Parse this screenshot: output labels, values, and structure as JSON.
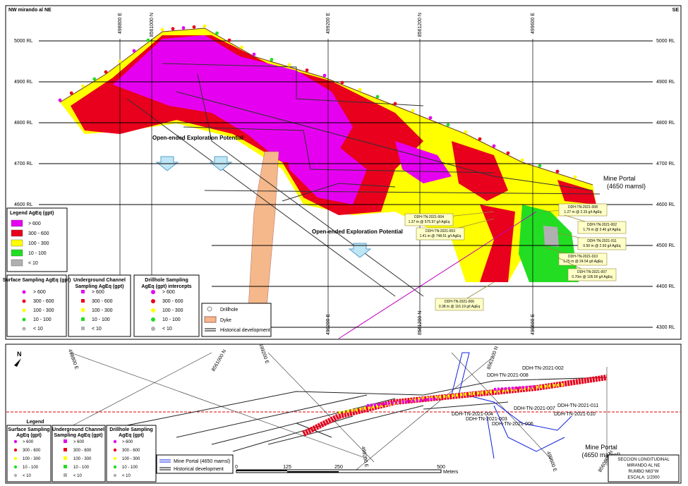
{
  "section": {
    "view_left": "NW mirando al NE",
    "view_right": "SE",
    "rl_labels": [
      "5000 RL",
      "4900 RL",
      "4800 RL",
      "4700 RL",
      "4600 RL",
      "4500 RL",
      "4400 RL",
      "4300 RL"
    ],
    "grid_labels": [
      "498800 E",
      "8561000 N",
      "499200 E",
      "8561200 N",
      "499600 E"
    ],
    "bottom_grid_labels": [
      "499200 E",
      "8561200 N",
      "499600 E"
    ],
    "annotations": [
      "Open-ended Exploration Potential",
      "Open-ended Exploration Potential"
    ],
    "mine_portal": [
      "Mine Portal",
      "(4650 mamsl)"
    ],
    "drillholes": [
      {
        "id": "DDH-TN-2021-008",
        "intercept": "1.27 m @ 2.33 g/t AgEq"
      },
      {
        "id": "DDH-TN-2021-004",
        "intercept": "1.37 m @ 575.97 g/t AgEq"
      },
      {
        "id": "DDH-TN-2021-002",
        "intercept": "1.79 m @ 3.46 g/t AgEq"
      },
      {
        "id": "DDH-TN-2021-003",
        "intercept": "1.41 m @ 748.51 g/t AgEq"
      },
      {
        "id": "DDH-TN-2021-011",
        "intercept": "0.50 m @ 2.93 g/t AgEq"
      },
      {
        "id": "DDH-TN-2021-010",
        "intercept": "1.25 m @ 24.54 g/t AgEq"
      },
      {
        "id": "DDH-TN-2021-007",
        "intercept": "0.70m @ 105.56 g/t AgEq"
      },
      {
        "id": "DDH-TN-2021-006",
        "intercept": "0.38 m @ 116.19 g/t AgEq"
      }
    ],
    "legend": {
      "title": "Legend AgEq (gpt)",
      "grades": [
        {
          "label": "> 600",
          "color": "#e600f0"
        },
        {
          "label": "300 - 600",
          "color": "#e8001c"
        },
        {
          "label": "100 - 300",
          "color": "#ffff00"
        },
        {
          "label": "10 - 100",
          "color": "#22dd22"
        },
        {
          "label": "< 10",
          "color": "#b0b0b0"
        }
      ],
      "surface": "Surface Sampling AgEq (gpt)",
      "channel": [
        "Underground Channel",
        "Sampling AgEq (gpt)"
      ],
      "drillhole": [
        "Drillhole Sampling",
        "AgEq (gpt) intercepts"
      ],
      "other": [
        "Drillhole",
        "Dyke",
        "Historical development"
      ]
    }
  },
  "plan": {
    "grid_labels": [
      "498800 E",
      "8561000 N",
      "499200 E",
      "8561200 N",
      "499200 E",
      "499600 E",
      "8560800 N"
    ],
    "drillholes": [
      "DDH-TN-2021-002",
      "DDH-TN-2021-008",
      "DDH-TN-2021-011",
      "DDH-TN-2021-007",
      "DDH-TN-2021-010",
      "DDH-TN-2021-004",
      "DDH-TN-2021-003",
      "DDH-TN-2021-006"
    ],
    "mine_portal": [
      "Mine Portal",
      "(4650 mamsl)"
    ],
    "legend": {
      "title": "Legend",
      "surface": [
        "Surface Sampling",
        "AgEq (gpt)"
      ],
      "channel": [
        "Underground Channel",
        "Sampling AgEq (gpt)"
      ],
      "drillhole": [
        "Drillhole Sampling",
        "AgEq (gpt)"
      ],
      "lines": [
        "Mine Portal (4650 mamsl)",
        "Historical development"
      ]
    },
    "scale": {
      "ticks": [
        "0",
        "125",
        "250",
        "500"
      ],
      "unit": "Meters"
    },
    "title_block": [
      "SECCION LONGITUDINAL",
      "MIRANDO  AL NE",
      "RUMBO N63°W",
      "ESCALA: 1/2000"
    ]
  }
}
